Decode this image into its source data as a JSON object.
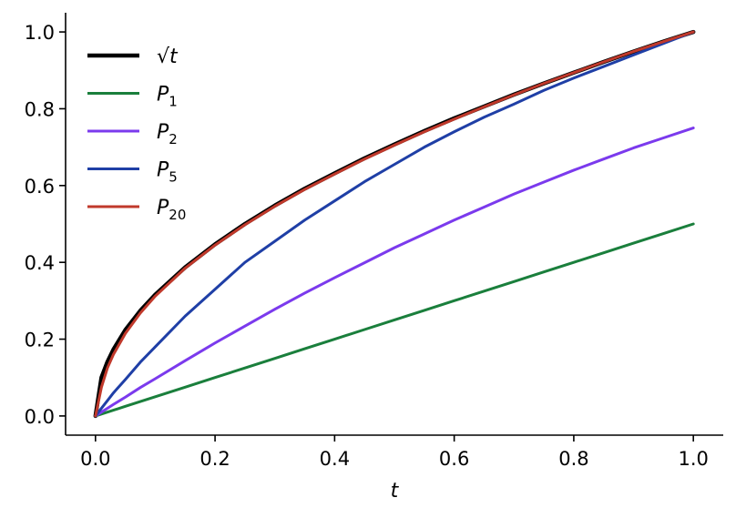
{
  "chart_data": {
    "type": "line",
    "title": "",
    "xlabel": "t",
    "ylabel": "",
    "xlim": [
      -0.05,
      1.05
    ],
    "ylim": [
      -0.05,
      1.05
    ],
    "xticks": [
      0.0,
      0.2,
      0.4,
      0.6,
      0.8,
      1.0
    ],
    "yticks": [
      0.0,
      0.2,
      0.4,
      0.6,
      0.8,
      1.0
    ],
    "xtick_labels": [
      "0.0",
      "0.2",
      "0.4",
      "0.6",
      "0.8",
      "1.0"
    ],
    "ytick_labels": [
      "0.0",
      "0.2",
      "0.4",
      "0.6",
      "0.8",
      "1.0"
    ],
    "grid": false,
    "legend_position": "top-left",
    "x": [
      0.0,
      0.01,
      0.02,
      0.03,
      0.05,
      0.075,
      0.1,
      0.15,
      0.2,
      0.25,
      0.3,
      0.35,
      0.4,
      0.45,
      0.5,
      0.55,
      0.6,
      0.65,
      0.7,
      0.75,
      0.8,
      0.85,
      0.9,
      0.95,
      1.0
    ],
    "series": [
      {
        "name": "√t",
        "legend_base": "√t",
        "legend_sub": "",
        "color": "#000000",
        "width": 4.5,
        "values": [
          0.0,
          0.1,
          0.141,
          0.173,
          0.224,
          0.274,
          0.316,
          0.387,
          0.447,
          0.5,
          0.548,
          0.592,
          0.632,
          0.671,
          0.707,
          0.742,
          0.775,
          0.806,
          0.837,
          0.866,
          0.894,
          0.922,
          0.949,
          0.975,
          1.0
        ]
      },
      {
        "name": "P1",
        "legend_base": "P",
        "legend_sub": "1",
        "color": "#1a7f3c",
        "width": 3,
        "values": [
          0.0,
          0.005,
          0.01,
          0.015,
          0.025,
          0.0375,
          0.05,
          0.075,
          0.1,
          0.125,
          0.15,
          0.175,
          0.2,
          0.225,
          0.25,
          0.275,
          0.3,
          0.325,
          0.35,
          0.375,
          0.4,
          0.425,
          0.45,
          0.475,
          0.5
        ]
      },
      {
        "name": "P2",
        "legend_base": "P",
        "legend_sub": "2",
        "color": "#7b3aed",
        "width": 3,
        "values": [
          0.0,
          0.01,
          0.02,
          0.03,
          0.049,
          0.074,
          0.097,
          0.144,
          0.19,
          0.234,
          0.278,
          0.32,
          0.36,
          0.399,
          0.438,
          0.474,
          0.51,
          0.544,
          0.578,
          0.609,
          0.64,
          0.669,
          0.698,
          0.724,
          0.75
        ]
      },
      {
        "name": "P5",
        "legend_base": "P",
        "legend_sub": "5",
        "color": "#1f3fa6",
        "width": 3,
        "values": [
          0.0,
          0.02,
          0.04,
          0.06,
          0.095,
          0.14,
          0.18,
          0.26,
          0.33,
          0.4,
          0.455,
          0.51,
          0.56,
          0.61,
          0.655,
          0.7,
          0.74,
          0.778,
          0.812,
          0.848,
          0.88,
          0.91,
          0.94,
          0.97,
          1.0
        ]
      },
      {
        "name": "P20",
        "legend_base": "P",
        "legend_sub": "20",
        "color": "#c0392b",
        "width": 3,
        "values": [
          0.0,
          0.075,
          0.125,
          0.16,
          0.215,
          0.268,
          0.312,
          0.385,
          0.445,
          0.498,
          0.546,
          0.59,
          0.63,
          0.669,
          0.705,
          0.74,
          0.773,
          0.805,
          0.836,
          0.866,
          0.894,
          0.922,
          0.949,
          0.975,
          1.0
        ]
      }
    ]
  }
}
